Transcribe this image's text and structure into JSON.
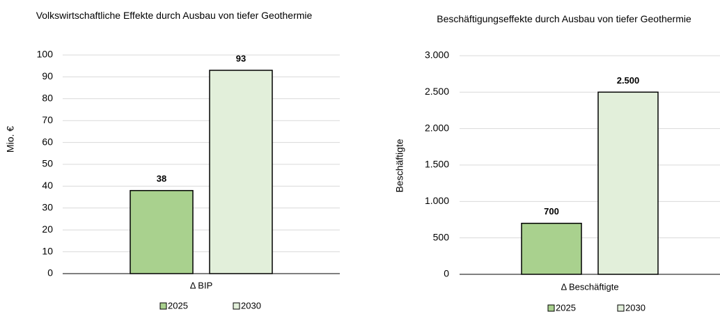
{
  "chart_data": [
    {
      "type": "bar",
      "title": "Volkswirtschaftliche Effekte durch Ausbau von tiefer Geothermie",
      "ylabel": "Mio. €",
      "categories": [
        "Δ BIP"
      ],
      "series": [
        {
          "name": "2025",
          "color": "#a9d18e",
          "values": [
            38
          ]
        },
        {
          "name": "2030",
          "color": "#e2efda",
          "values": [
            93
          ]
        }
      ],
      "ylim": [
        0,
        100
      ],
      "yticks": [
        0,
        10,
        20,
        30,
        40,
        50,
        60,
        70,
        80,
        90,
        100
      ],
      "grid": true,
      "legend": "bottom"
    },
    {
      "type": "bar",
      "title": "Beschäftigungseffekte durch Ausbau von tiefer Geothermie",
      "ylabel": "Beschäftigte",
      "categories": [
        "Δ Beschäftigte"
      ],
      "series": [
        {
          "name": "2025",
          "color": "#a9d18e",
          "values": [
            700
          ],
          "value_labels": [
            "700"
          ]
        },
        {
          "name": "2030",
          "color": "#e2efda",
          "values": [
            2500
          ],
          "value_labels": [
            "2.500"
          ]
        }
      ],
      "ylim": [
        0,
        3000
      ],
      "yticks": [
        0,
        500,
        {
          "value": 1000,
          "label": "1.000"
        },
        {
          "value": 1500,
          "label": "1.500"
        },
        {
          "value": 2000,
          "label": "2.000"
        },
        {
          "value": 2500,
          "label": "2.500"
        },
        {
          "value": 3000,
          "label": "3.000"
        }
      ],
      "grid": true,
      "legend": "bottom"
    }
  ]
}
